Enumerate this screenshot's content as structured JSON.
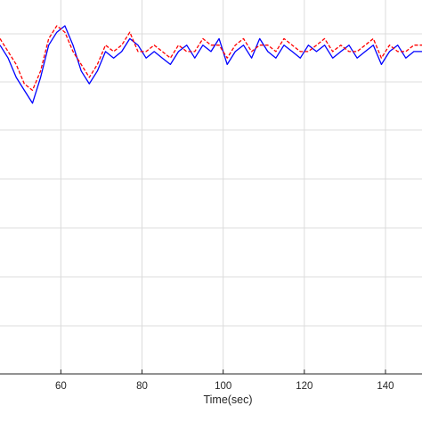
{
  "chart_data": {
    "type": "line",
    "title": "",
    "xlabel": "Time(sec)",
    "ylabel": "",
    "xlim": [
      45,
      149
    ],
    "xticks": [
      60,
      80,
      100,
      120,
      140
    ],
    "grid": true,
    "legend": "none",
    "x": [
      45,
      47,
      49,
      51,
      53,
      55,
      57,
      59,
      61,
      63,
      65,
      67,
      69,
      71,
      73,
      75,
      77,
      79,
      81,
      83,
      85,
      87,
      89,
      91,
      93,
      95,
      97,
      99,
      101,
      103,
      105,
      107,
      109,
      111,
      113,
      115,
      117,
      119,
      121,
      123,
      125,
      127,
      129,
      131,
      133,
      135,
      137,
      139,
      141,
      143,
      145,
      147,
      149
    ],
    "series": [
      {
        "style": "solid",
        "color": "#0000ff",
        "values": [
          0.3,
          0.1,
          -0.2,
          -0.4,
          -0.6,
          -0.2,
          0.3,
          0.5,
          0.6,
          0.3,
          -0.1,
          -0.3,
          -0.1,
          0.2,
          0.1,
          0.2,
          0.4,
          0.3,
          0.1,
          0.2,
          0.1,
          0.0,
          0.2,
          0.3,
          0.1,
          0.3,
          0.2,
          0.4,
          0.0,
          0.2,
          0.3,
          0.1,
          0.4,
          0.2,
          0.1,
          0.3,
          0.2,
          0.1,
          0.3,
          0.2,
          0.3,
          0.1,
          0.2,
          0.3,
          0.1,
          0.2,
          0.3,
          0.0,
          0.2,
          0.3,
          0.1,
          0.2,
          0.2
        ]
      },
      {
        "style": "dashed",
        "color": "#ff0000",
        "values": [
          0.4,
          0.2,
          0.0,
          -0.3,
          -0.4,
          -0.1,
          0.4,
          0.6,
          0.5,
          0.2,
          0.0,
          -0.2,
          0.0,
          0.3,
          0.2,
          0.3,
          0.5,
          0.2,
          0.2,
          0.3,
          0.2,
          0.1,
          0.3,
          0.2,
          0.2,
          0.4,
          0.3,
          0.3,
          0.1,
          0.3,
          0.4,
          0.2,
          0.3,
          0.3,
          0.2,
          0.4,
          0.3,
          0.2,
          0.2,
          0.3,
          0.4,
          0.2,
          0.3,
          0.2,
          0.2,
          0.3,
          0.4,
          0.1,
          0.3,
          0.2,
          0.2,
          0.3,
          0.3
        ]
      }
    ]
  }
}
